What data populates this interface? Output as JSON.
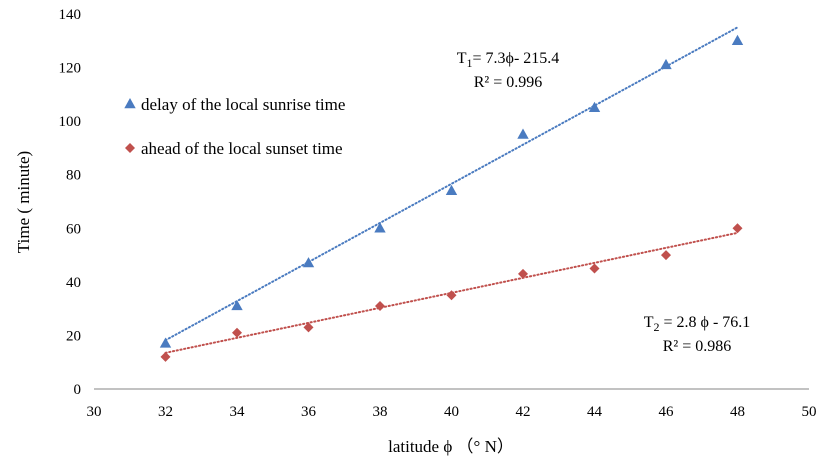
{
  "chart_data": {
    "type": "scatter",
    "xlabel": "latitude ϕ （° N）",
    "ylabel": "Time ( minute)",
    "xlim": [
      30,
      50
    ],
    "ylim": [
      0,
      140
    ],
    "x_ticks": [
      30,
      32,
      34,
      36,
      38,
      40,
      42,
      44,
      46,
      48,
      50
    ],
    "y_ticks": [
      0,
      20,
      40,
      60,
      80,
      100,
      120,
      140
    ],
    "x_tick_labels": [
      "30",
      "32",
      "34",
      "36",
      "38",
      "40",
      "42",
      "44",
      "46",
      "48",
      "50"
    ],
    "y_tick_labels": [
      "0",
      "20",
      "40",
      "60",
      "80",
      "100",
      "120",
      "140"
    ],
    "grid": false,
    "legend_position": "left",
    "series": [
      {
        "name": "delay of the local sunrise time",
        "marker": "triangle",
        "color": "#4a7bc0",
        "x": [
          32,
          34,
          36,
          38,
          40,
          42,
          44,
          46,
          48
        ],
        "y": [
          17,
          31,
          47,
          60,
          74,
          95,
          105,
          121,
          130
        ],
        "trendline": {
          "slope": 7.3,
          "intercept": -215.4,
          "style": "dotted"
        },
        "equation": "T1= 7.3ϕ- 215.4",
        "r_squared": "R² = 0.996"
      },
      {
        "name": "ahead of the local sunset time",
        "marker": "diamond",
        "color": "#c0504d",
        "x": [
          32,
          34,
          36,
          38,
          40,
          42,
          44,
          46,
          48
        ],
        "y": [
          12,
          21,
          23,
          31,
          35,
          43,
          45,
          50,
          60
        ],
        "trendline": {
          "slope": 2.8,
          "intercept": -76.1,
          "style": "dotted"
        },
        "equation": "T2 = 2.8 ϕ - 76.1",
        "r_squared": "R² = 0.986"
      }
    ]
  }
}
